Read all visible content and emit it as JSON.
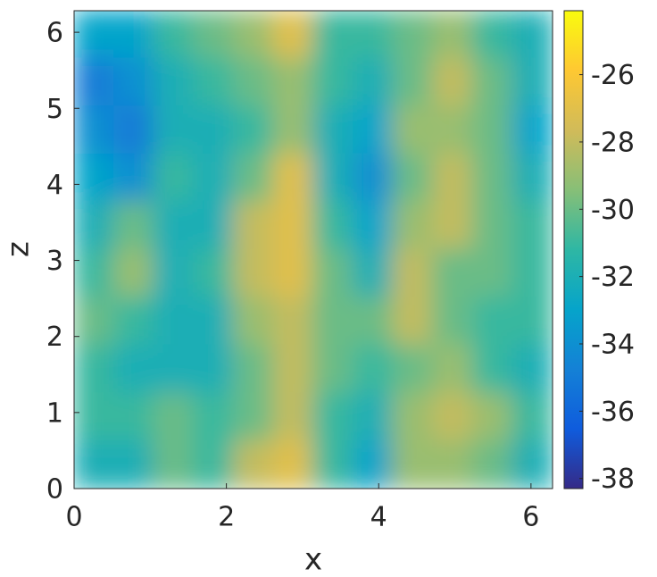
{
  "chart_data": {
    "type": "heatmap",
    "xlabel": "x",
    "ylabel": "z",
    "xlim": [
      0,
      6.2832
    ],
    "ylim": [
      0,
      6.2832
    ],
    "xticks": [
      0,
      2,
      4,
      6
    ],
    "yticks": [
      0,
      1,
      2,
      3,
      4,
      5,
      6
    ],
    "x": [
      0.26,
      0.79,
      1.31,
      1.83,
      2.36,
      2.88,
      3.4,
      3.93,
      4.45,
      4.97,
      5.5,
      6.02
    ],
    "y": [
      5.97,
      5.34,
      4.71,
      4.08,
      3.46,
      2.83,
      2.2,
      1.57,
      0.94,
      0.31
    ],
    "values": [
      [
        -33,
        -33,
        -31,
        -30,
        -29,
        -27,
        -31,
        -31,
        -30,
        -29,
        -31,
        -32
      ],
      [
        -35,
        -34,
        -32,
        -31,
        -30,
        -29,
        -31,
        -32,
        -30,
        -28,
        -30,
        -32
      ],
      [
        -34,
        -35,
        -32,
        -32,
        -31,
        -29,
        -32,
        -33,
        -29,
        -29,
        -30,
        -33
      ],
      [
        -33,
        -34,
        -31,
        -32,
        -30,
        -27,
        -32,
        -34,
        -30,
        -28,
        -30,
        -32
      ],
      [
        -32,
        -30,
        -32,
        -32,
        -28,
        -27,
        -31,
        -33,
        -29,
        -28,
        -30,
        -31
      ],
      [
        -31,
        -29,
        -32,
        -31,
        -28,
        -27,
        -30,
        -32,
        -28,
        -30,
        -30,
        -31
      ],
      [
        -30,
        -31,
        -32,
        -32,
        -29,
        -28,
        -30,
        -30,
        -28,
        -30,
        -31,
        -31
      ],
      [
        -31,
        -32,
        -32,
        -32,
        -30,
        -28,
        -30,
        -31,
        -30,
        -29,
        -31,
        -32
      ],
      [
        -31,
        -31,
        -30,
        -31,
        -30,
        -28,
        -31,
        -32,
        -29,
        -28,
        -29,
        -31
      ],
      [
        -32,
        -32,
        -30,
        -31,
        -28,
        -27,
        -31,
        -33,
        -29,
        -29,
        -30,
        -32
      ]
    ],
    "clim": [
      -38.3,
      -24.1
    ],
    "cticks": [
      -38,
      -36,
      -34,
      -32,
      -30,
      -28,
      -26
    ],
    "colormap": [
      "#352a87",
      "#0f5cdd",
      "#1481d6",
      "#06a4ca",
      "#2eb7a4",
      "#87bf77",
      "#d1bb59",
      "#fec832",
      "#f9fb0e"
    ]
  }
}
